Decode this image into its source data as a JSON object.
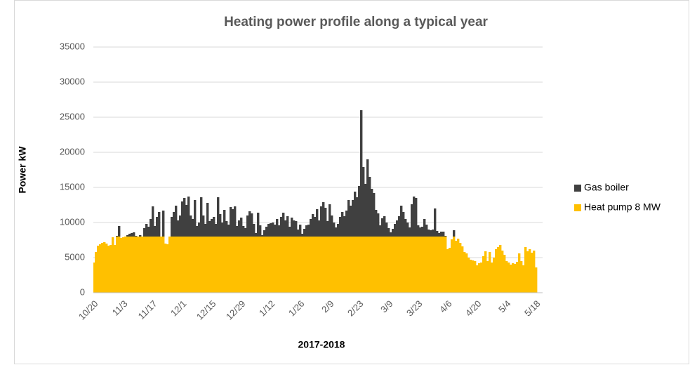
{
  "chart_data": {
    "type": "bar",
    "stacked": true,
    "title": "Heating power profile along a typical year",
    "x_label": "2017-2018",
    "y_label": "Power kW",
    "categories": [
      "10/20",
      null,
      null,
      null,
      null,
      null,
      null,
      null,
      null,
      null,
      null,
      null,
      null,
      null,
      "11/3",
      null,
      null,
      null,
      null,
      null,
      null,
      null,
      null,
      null,
      null,
      null,
      null,
      null,
      "11/17",
      null,
      null,
      null,
      null,
      null,
      null,
      null,
      null,
      null,
      null,
      null,
      null,
      null,
      "12/1",
      null,
      null,
      null,
      null,
      null,
      null,
      null,
      null,
      null,
      null,
      null,
      null,
      null,
      "12/15",
      null,
      null,
      null,
      null,
      null,
      null,
      null,
      null,
      null,
      null,
      null,
      null,
      null,
      "12/29",
      null,
      null,
      null,
      null,
      null,
      null,
      null,
      null,
      null,
      null,
      null,
      null,
      null,
      "1/12",
      null,
      null,
      null,
      null,
      null,
      null,
      null,
      null,
      null,
      null,
      null,
      null,
      null,
      "1/26",
      null,
      null,
      null,
      null,
      null,
      null,
      null,
      null,
      null,
      null,
      null,
      null,
      null,
      "2/9",
      null,
      null,
      null,
      null,
      null,
      null,
      null,
      null,
      null,
      null,
      null,
      null,
      null,
      "2/23",
      null,
      null,
      null,
      null,
      null,
      null,
      null,
      null,
      null,
      null,
      null,
      null,
      null,
      "3/9",
      null,
      null,
      null,
      null,
      null,
      null,
      null,
      null,
      null,
      null,
      null,
      null,
      null,
      "3/23",
      null,
      null,
      null,
      null,
      null,
      null,
      null,
      null,
      null,
      null,
      null,
      null,
      null,
      "4/6",
      null,
      null,
      null,
      null,
      null,
      null,
      null,
      null,
      null,
      null,
      null,
      null,
      null,
      "4/20",
      null,
      null,
      null,
      null,
      null,
      null,
      null,
      null,
      null,
      null,
      null,
      null,
      null,
      "5/4",
      null,
      null,
      null,
      null,
      null,
      null,
      null,
      null,
      null,
      null,
      null,
      null,
      null,
      "5/18"
    ],
    "series": [
      {
        "name": "Heat pump 8 MW",
        "color": "#ffc000",
        "values": [
          4300,
          5800,
          6700,
          6900,
          7100,
          7200,
          7000,
          6700,
          6800,
          7900,
          6800,
          8000,
          8000,
          7800,
          7900,
          8000,
          8000,
          8000,
          8000,
          8000,
          8000,
          8000,
          8000,
          8000,
          8000,
          8000,
          8000,
          8000,
          8000,
          8000,
          8000,
          8000,
          8000,
          8000,
          7000,
          6900,
          8000,
          8000,
          8000,
          8000,
          8000,
          8000,
          8000,
          8000,
          8000,
          8000,
          8000,
          8000,
          8000,
          8000,
          8000,
          8000,
          8000,
          8000,
          8000,
          8000,
          8000,
          8000,
          8000,
          8000,
          8000,
          8000,
          8000,
          8000,
          8000,
          8000,
          8000,
          8000,
          8000,
          8000,
          8000,
          8000,
          8000,
          8000,
          8000,
          8000,
          8000,
          8000,
          8000,
          8000,
          8000,
          8000,
          8000,
          8000,
          8000,
          8000,
          8000,
          8000,
          8000,
          8000,
          8000,
          8000,
          8000,
          8000,
          8000,
          8000,
          8000,
          8000,
          8000,
          8000,
          8000,
          8000,
          8000,
          8000,
          8000,
          8000,
          8000,
          8000,
          8000,
          8000,
          8000,
          8000,
          8000,
          8000,
          8000,
          8000,
          8000,
          8000,
          8000,
          8000,
          8000,
          8000,
          8000,
          8000,
          8000,
          8000,
          8000,
          8000,
          8000,
          8000,
          8000,
          8000,
          8000,
          8000,
          8000,
          8000,
          8000,
          8000,
          8000,
          8000,
          8000,
          8000,
          8000,
          8000,
          8000,
          8000,
          8000,
          8000,
          8000,
          8000,
          8000,
          8000,
          8000,
          8000,
          8000,
          8000,
          8000,
          8000,
          8000,
          8000,
          8000,
          8000,
          8000,
          8000,
          8000,
          8000,
          8000,
          8000,
          6200,
          6400,
          7600,
          8000,
          7400,
          7700,
          7100,
          6600,
          5800,
          5600,
          5000,
          4700,
          4600,
          4500,
          3900,
          4200,
          4300,
          5200,
          5900,
          4500,
          5800,
          4300,
          5000,
          6200,
          6500,
          6800,
          6000,
          5400,
          4500,
          4300,
          4000,
          4200,
          4100,
          4400,
          5600,
          4500,
          3900,
          6500,
          5900,
          6200,
          5700,
          6000,
          3600
        ]
      },
      {
        "name": "Gas boiler",
        "color": "#404040",
        "values": [
          0,
          0,
          0,
          0,
          0,
          0,
          0,
          0,
          0,
          0,
          0,
          100,
          1500,
          0,
          0,
          0,
          200,
          400,
          500,
          600,
          100,
          0,
          200,
          0,
          1200,
          1800,
          1400,
          2500,
          4300,
          1500,
          2800,
          3500,
          0,
          3700,
          0,
          0,
          0,
          2800,
          3500,
          4400,
          2300,
          3000,
          5000,
          5500,
          4500,
          5700,
          3000,
          2500,
          5200,
          1500,
          2000,
          5600,
          3000,
          1800,
          4800,
          2200,
          2500,
          2800,
          1800,
          5600,
          3200,
          2000,
          3800,
          2200,
          1700,
          4200,
          3900,
          4300,
          1500,
          2300,
          2700,
          1500,
          1200,
          3000,
          3600,
          3300,
          1800,
          500,
          3400,
          1600,
          200,
          900,
          1400,
          1800,
          1900,
          2000,
          1700,
          2500,
          1600,
          2800,
          3400,
          2300,
          2900,
          1400,
          2700,
          2300,
          2200,
          1000,
          1700,
          400,
          1100,
          1600,
          1700,
          2500,
          3200,
          2800,
          3900,
          2300,
          4300,
          4900,
          4100,
          2200,
          4600,
          3000,
          2000,
          1300,
          1800,
          2800,
          3500,
          2900,
          3700,
          5200,
          4400,
          5200,
          6400,
          5600,
          7200,
          18000,
          9900,
          7500,
          11000,
          8500,
          6800,
          6200,
          3800,
          3300,
          1600,
          2600,
          2900,
          2000,
          1200,
          600,
          1100,
          1800,
          2300,
          2900,
          4400,
          3500,
          2500,
          2000,
          1300,
          4600,
          5700,
          5500,
          1600,
          1300,
          1400,
          2500,
          1700,
          1000,
          900,
          1000,
          4000,
          800,
          500,
          700,
          700,
          100,
          0,
          0,
          0,
          900,
          0,
          0,
          0,
          0,
          0,
          0,
          0,
          0,
          0,
          0,
          0,
          0,
          0,
          0,
          0,
          0,
          0,
          0,
          0,
          0,
          0,
          0,
          0,
          0,
          0,
          0,
          0,
          0,
          0,
          0,
          0,
          0,
          0,
          0,
          0,
          0,
          0,
          0,
          0
        ]
      }
    ],
    "legend_order": [
      1,
      0
    ],
    "ylim": [
      0,
      35000
    ],
    "yticks": [
      0,
      5000,
      10000,
      15000,
      20000,
      25000,
      30000,
      35000
    ],
    "grid": true,
    "legend": "right"
  }
}
